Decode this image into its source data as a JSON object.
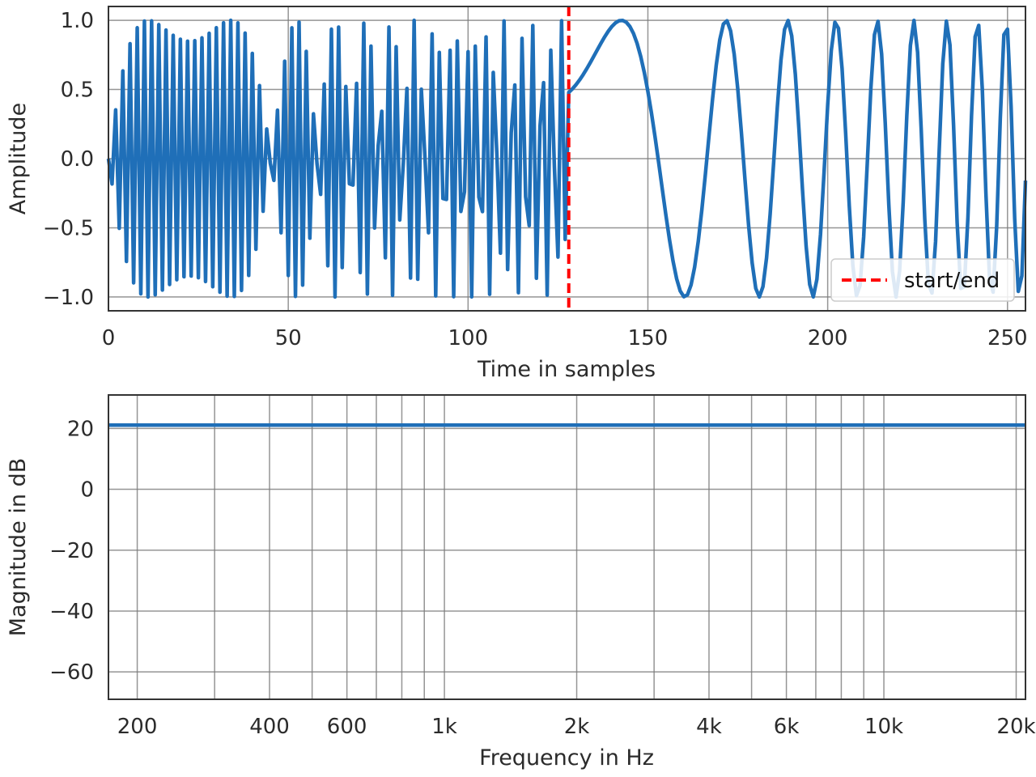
{
  "chart_data": [
    {
      "type": "line",
      "xlabel": "Time in samples",
      "ylabel": "Amplitude",
      "xlim": [
        0,
        255
      ],
      "ylim": [
        -1.1,
        1.1
      ],
      "xticks": [
        0,
        50,
        100,
        150,
        200,
        250
      ],
      "yticks": [
        1.0,
        0.5,
        0.0,
        -0.5,
        -1.0
      ],
      "xtick_labels": [
        "0",
        "50",
        "100",
        "150",
        "200",
        "250"
      ],
      "ytick_labels": [
        "1.0",
        "0.5",
        "0.0",
        "−0.5",
        "−1.0"
      ],
      "grid": true,
      "signal": {
        "kind": "swept sine, ascending to high frequency until sample 128, then restarting from low frequency",
        "length": 256,
        "color": "#1f6fb8"
      },
      "vline": {
        "x": 128,
        "name": "start/end",
        "color": "#ff0000",
        "style": "dashed"
      },
      "legend": {
        "location": "lower-right",
        "entries": [
          "start/end"
        ]
      }
    },
    {
      "type": "line",
      "xlabel": "Frequency in Hz",
      "ylabel": "Magnitude in dB",
      "xscale": "log",
      "xlim": [
        172,
        21000
      ],
      "ylim": [
        -69,
        31
      ],
      "xticks": [
        200,
        400,
        600,
        1000,
        2000,
        4000,
        6000,
        10000,
        20000
      ],
      "xtick_labels": [
        "200",
        "400",
        "600",
        "1k",
        "2k",
        "4k",
        "6k",
        "10k",
        "20k"
      ],
      "x_gridlines": [
        200,
        300,
        400,
        500,
        600,
        700,
        800,
        900,
        1000,
        2000,
        3000,
        4000,
        5000,
        6000,
        7000,
        8000,
        9000,
        10000,
        20000
      ],
      "yticks": [
        20,
        0,
        -20,
        -40,
        -60
      ],
      "ytick_labels": [
        "20",
        "0",
        "−20",
        "−40",
        "−60"
      ],
      "grid": true,
      "series": [
        {
          "x": [
            172,
            21000
          ],
          "y": [
            21.1,
            21.1
          ],
          "color": "#1f6fb8"
        }
      ]
    }
  ]
}
